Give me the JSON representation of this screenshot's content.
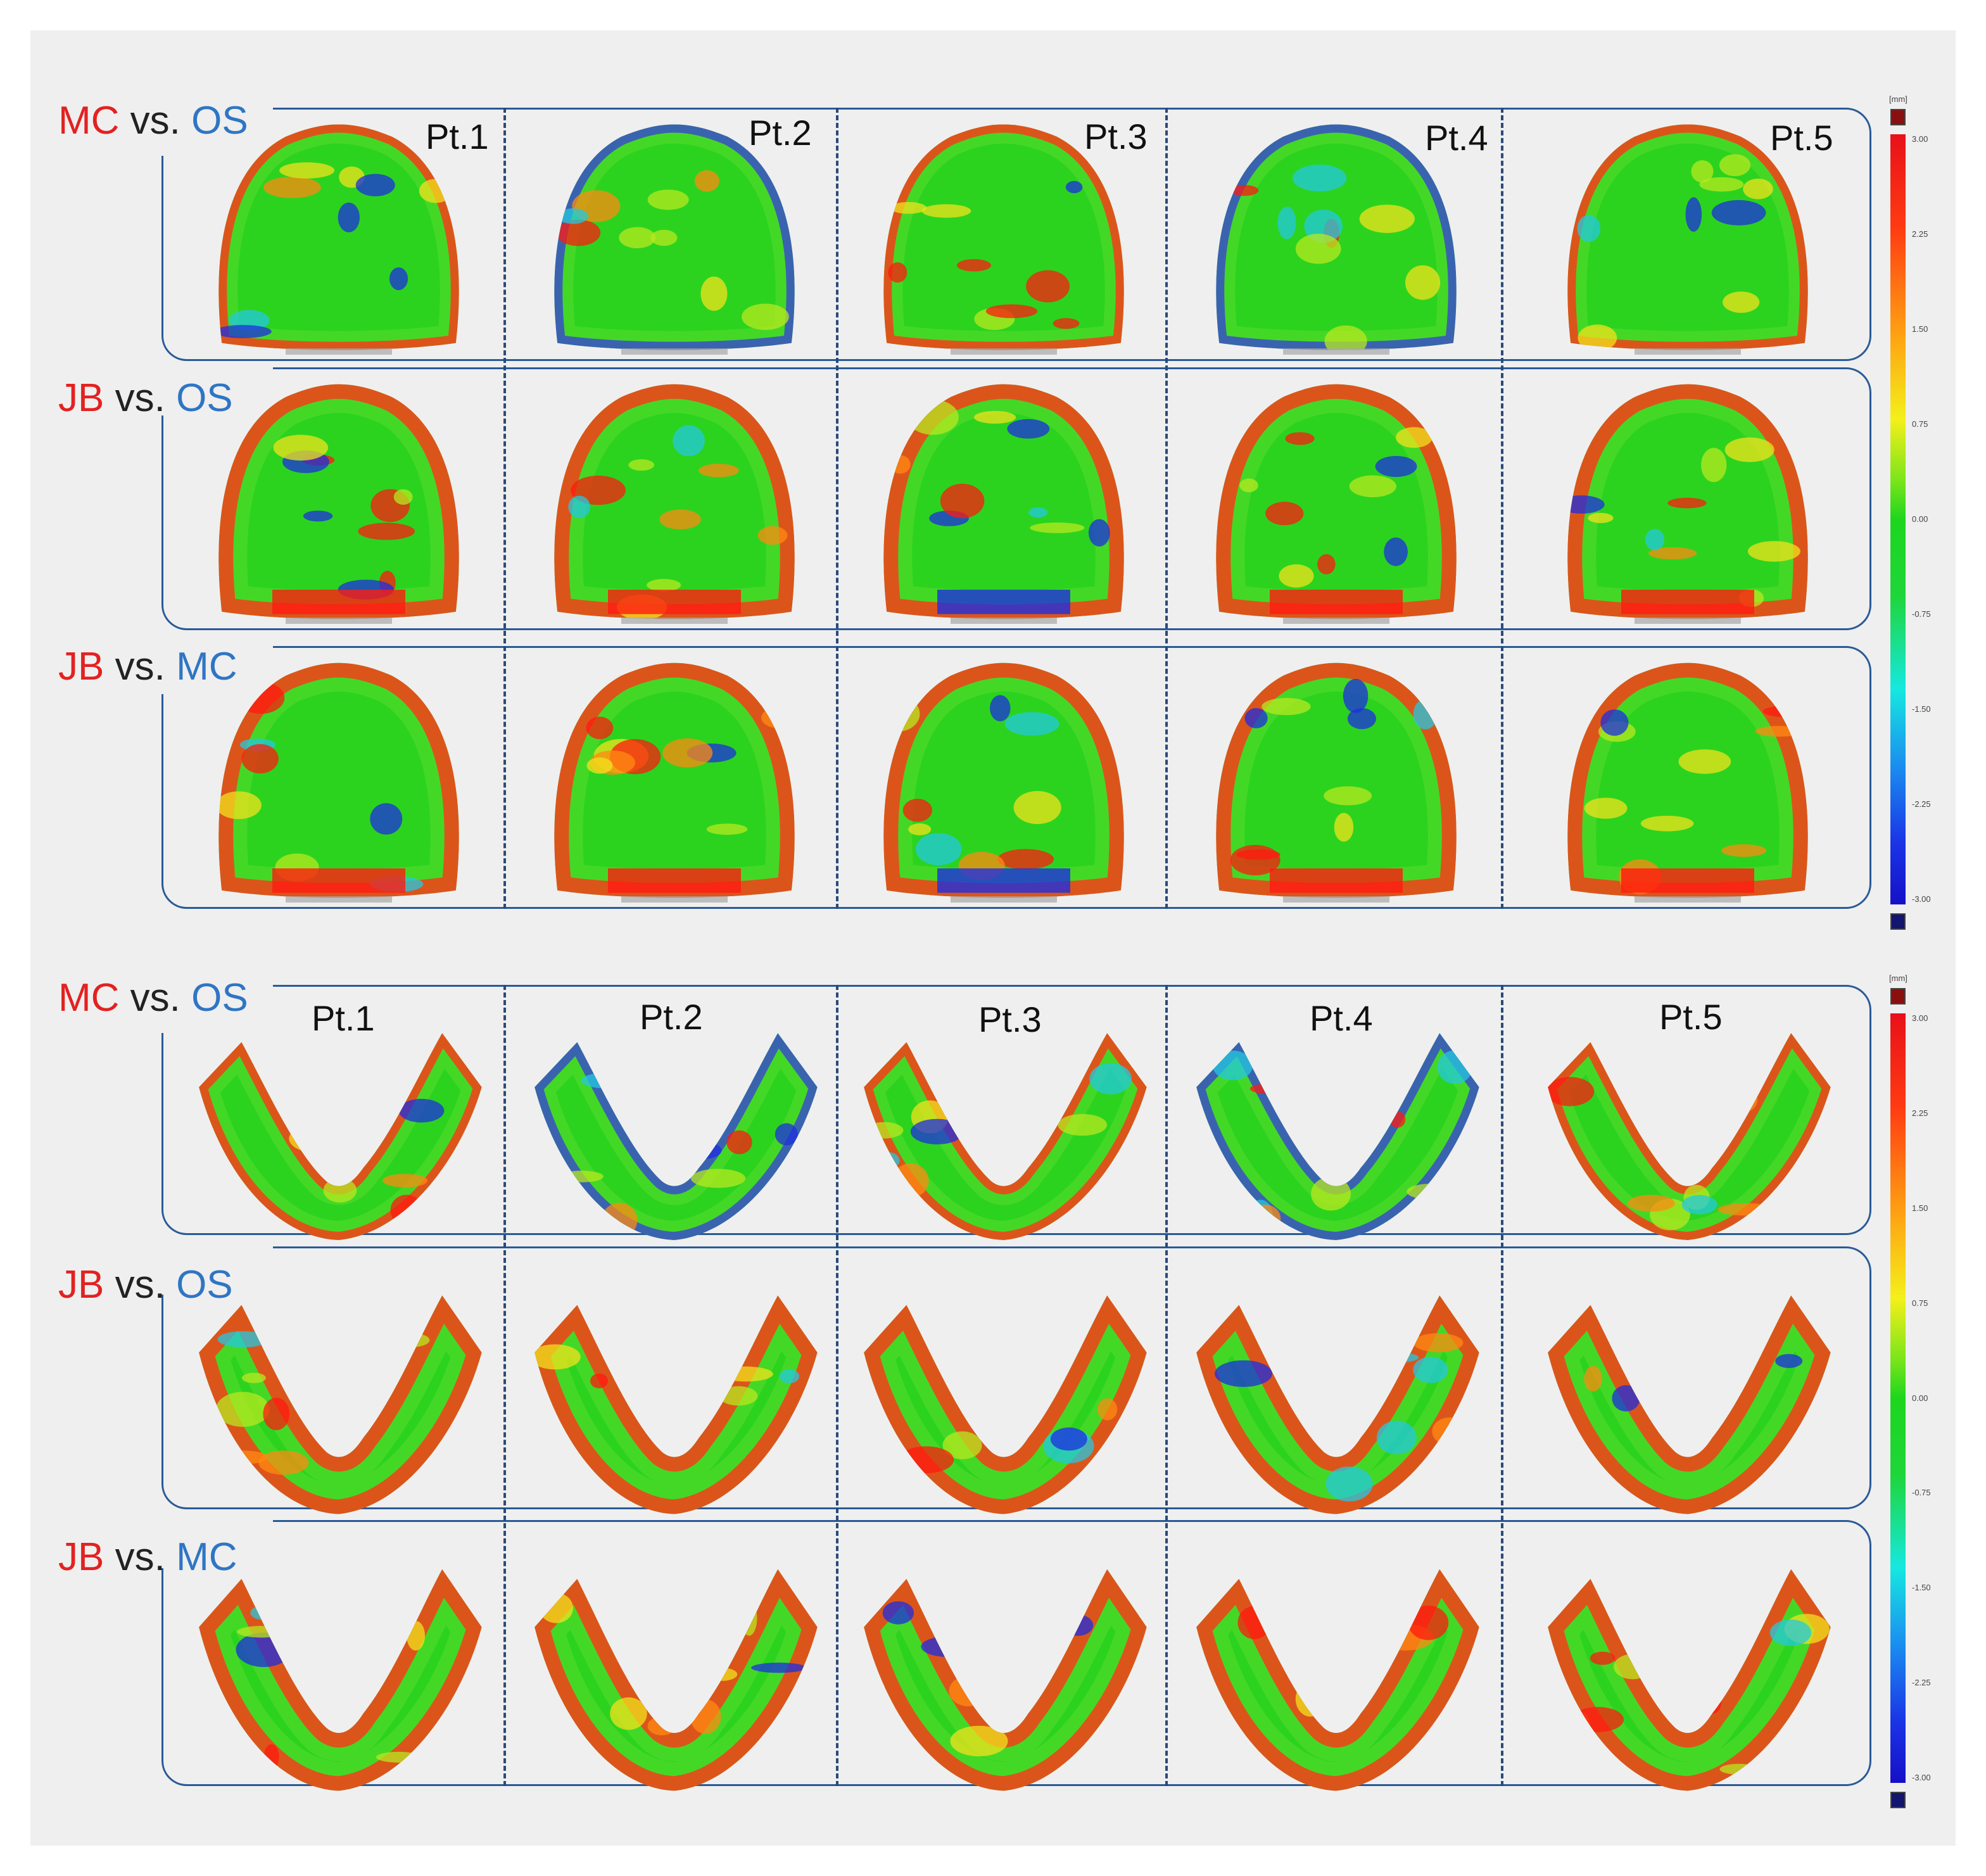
{
  "colors": {
    "label_red": "#e32121",
    "label_blue": "#2f75c4",
    "frame": "#2a5a97",
    "scan_green": "#2bd31f",
    "scan_red": "#ff1a10",
    "scan_blue": "#1e2ee0",
    "scan_gray": "#a8a8a8",
    "cap_top": "#8a1010",
    "cap_bottom": "#12166e"
  },
  "arches": [
    {
      "name": "maxillary",
      "patients": [
        "Pt.1",
        "Pt.2",
        "Pt.3",
        "Pt.4",
        "Pt.5"
      ],
      "rows": [
        {
          "a": "MC",
          "vs": "vs.",
          "b": "OS",
          "a_color": "red",
          "b_color": "blue"
        },
        {
          "a": "JB",
          "vs": "vs.",
          "b": "OS",
          "a_color": "red",
          "b_color": "blue"
        },
        {
          "a": "JB",
          "vs": "vs.",
          "b": "MC",
          "a_color": "red",
          "b_color": "blue"
        }
      ]
    },
    {
      "name": "mandibular",
      "patients": [
        "Pt.1",
        "Pt.2",
        "Pt.3",
        "Pt.4",
        "Pt.5"
      ],
      "rows": [
        {
          "a": "MC",
          "vs": "vs.",
          "b": "OS",
          "a_color": "red",
          "b_color": "blue"
        },
        {
          "a": "JB",
          "vs": "vs.",
          "b": "OS",
          "a_color": "red",
          "b_color": "blue"
        },
        {
          "a": "JB",
          "vs": "vs.",
          "b": "MC",
          "a_color": "red",
          "b_color": "blue"
        }
      ]
    }
  ],
  "colorbar": {
    "unit": "[mm]",
    "ticks": [
      "3.00",
      "2.25",
      "1.50",
      "0.75",
      "0.00",
      "-0.75",
      "-1.50",
      "-2.25",
      "-3.00"
    ]
  }
}
